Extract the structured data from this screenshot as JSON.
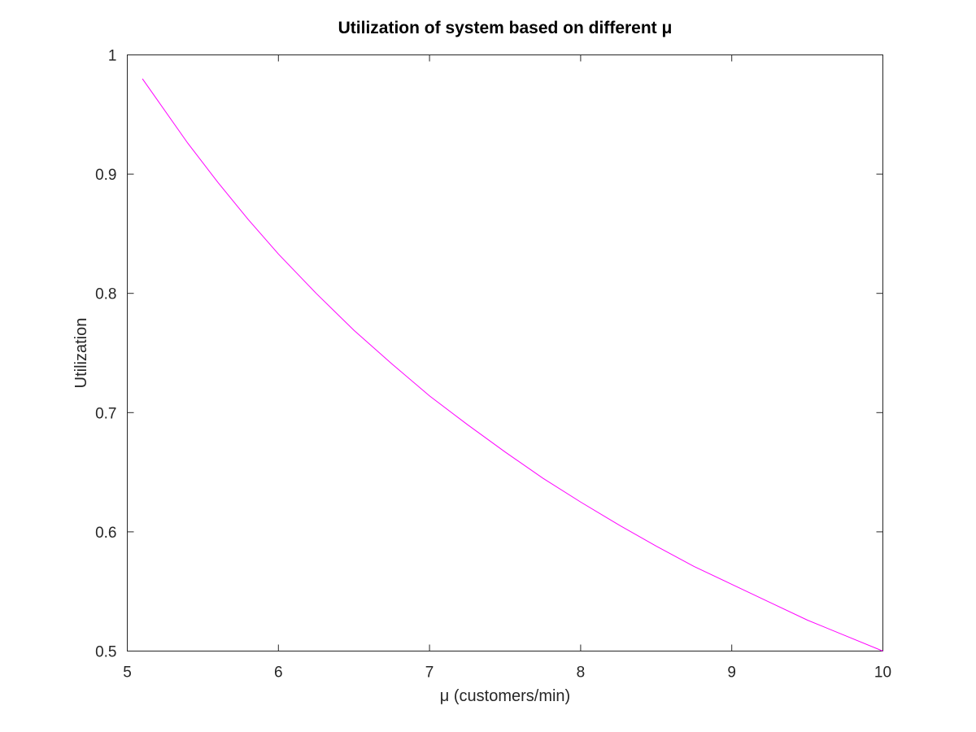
{
  "chart_data": {
    "type": "line",
    "title": "Utilization of system based on different μ",
    "xlabel": "μ (customers/min)",
    "ylabel": "Utilization",
    "xlim": [
      5,
      10
    ],
    "ylim": [
      0.5,
      1
    ],
    "xticks": [
      "5",
      "6",
      "7",
      "8",
      "9",
      "10"
    ],
    "yticks": [
      "0.5",
      "0.6",
      "0.7",
      "0.8",
      "0.9",
      "1"
    ],
    "grid": false,
    "legend": "none",
    "series": [
      {
        "color": "#ff00ff",
        "x": [
          5.1,
          5.2,
          5.4,
          5.6,
          5.8,
          6.0,
          6.25,
          6.5,
          6.75,
          7.0,
          7.25,
          7.5,
          7.75,
          8.0,
          8.25,
          8.5,
          8.75,
          9.0,
          9.25,
          9.5,
          9.75,
          10.0
        ],
        "y": [
          0.98,
          0.962,
          0.926,
          0.893,
          0.862,
          0.833,
          0.8,
          0.769,
          0.741,
          0.714,
          0.69,
          0.667,
          0.645,
          0.625,
          0.606,
          0.588,
          0.571,
          0.556,
          0.541,
          0.526,
          0.513,
          0.5
        ]
      }
    ]
  }
}
